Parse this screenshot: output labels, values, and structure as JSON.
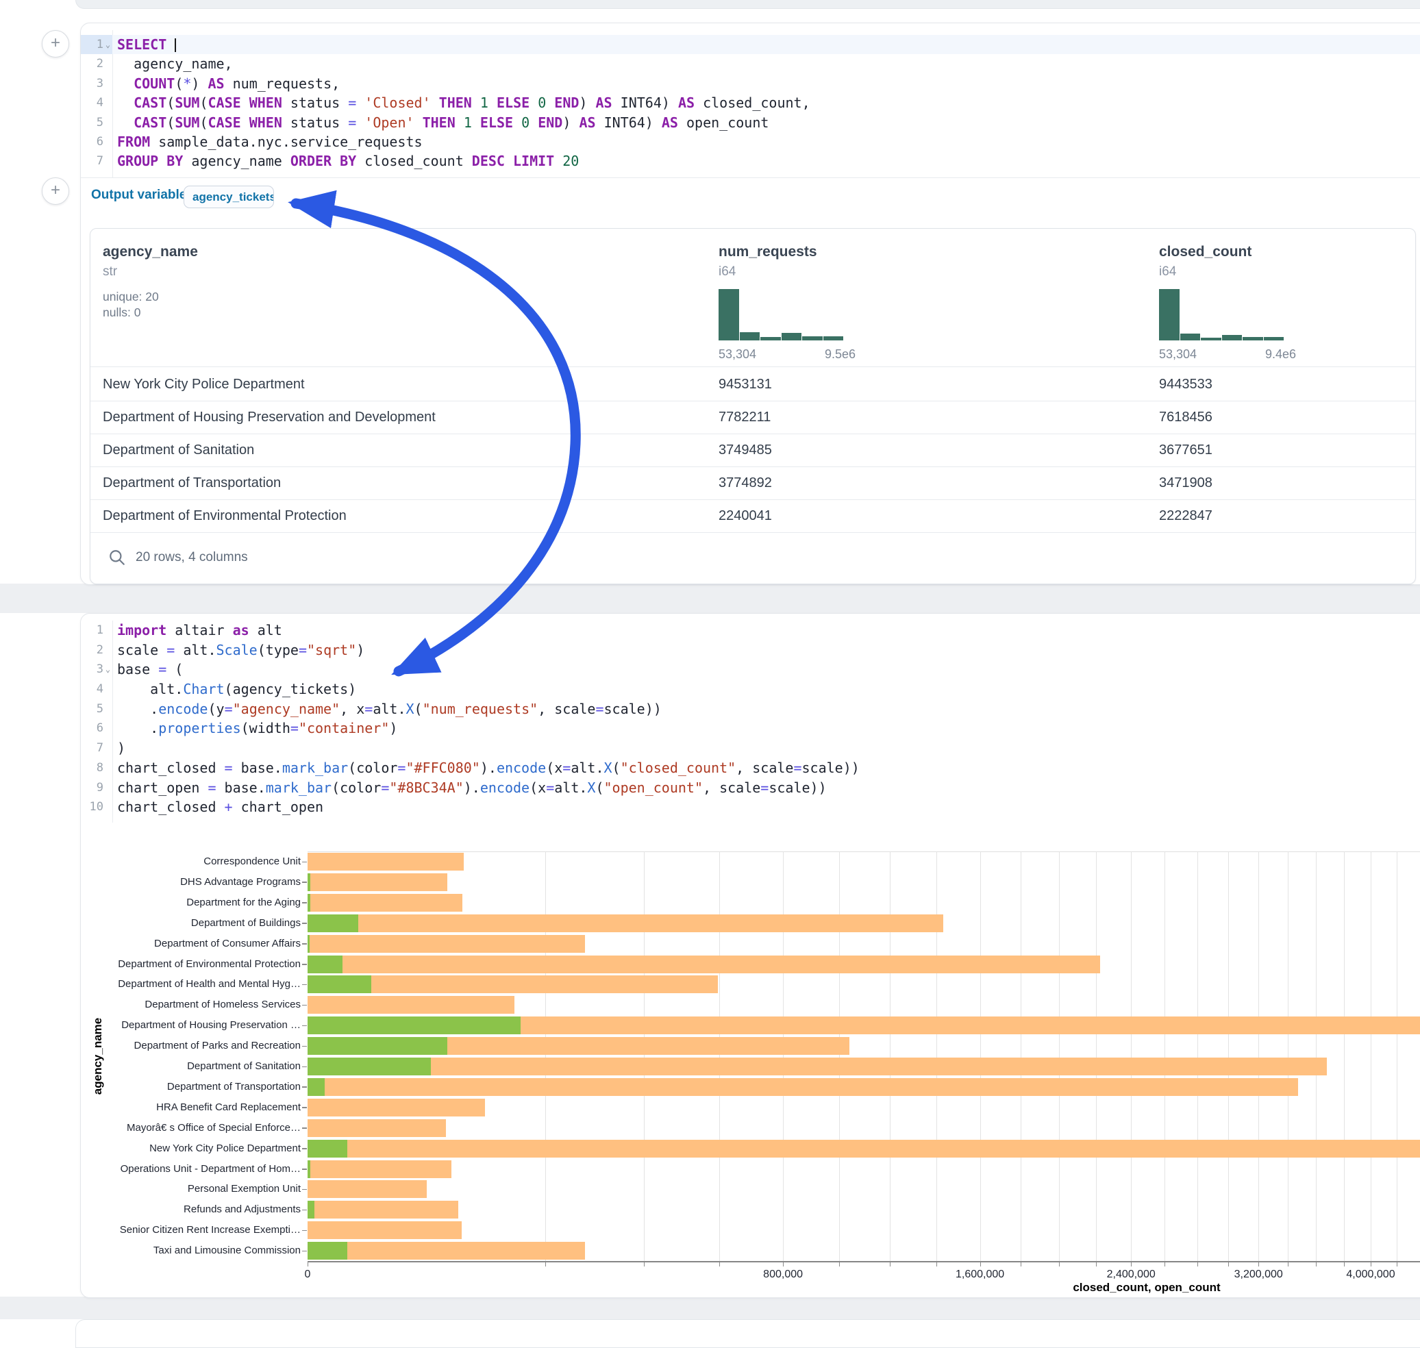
{
  "accent_colors": {
    "arrow": "#2b59e3",
    "hist_bar": "#3a7163",
    "closed_bar": "#FFC080",
    "open_bar": "#8BC34A",
    "outvar_blue": "#1173a8"
  },
  "buttons": {
    "add_cell_top": "+",
    "add_cell_mid": "+"
  },
  "sql_cell": {
    "fold_lines": [
      0
    ],
    "active_line": 0,
    "lines": [
      [
        [
          "kw",
          "SELECT"
        ],
        [
          "pl",
          " "
        ],
        [
          "cursor",
          ""
        ]
      ],
      [
        [
          "pl",
          "  agency_name,"
        ]
      ],
      [
        [
          "pl",
          "  "
        ],
        [
          "kw",
          "COUNT"
        ],
        [
          "pl",
          "("
        ],
        [
          "op",
          "*"
        ],
        [
          "pl",
          ") "
        ],
        [
          "kw",
          "AS"
        ],
        [
          "pl",
          " num_requests,"
        ]
      ],
      [
        [
          "pl",
          "  "
        ],
        [
          "kw",
          "CAST"
        ],
        [
          "pl",
          "("
        ],
        [
          "kw",
          "SUM"
        ],
        [
          "pl",
          "("
        ],
        [
          "kw",
          "CASE"
        ],
        [
          "pl",
          " "
        ],
        [
          "kw",
          "WHEN"
        ],
        [
          "pl",
          " status "
        ],
        [
          "op",
          "="
        ],
        [
          "pl",
          " "
        ],
        [
          "str",
          "'Closed'"
        ],
        [
          "pl",
          " "
        ],
        [
          "kw",
          "THEN"
        ],
        [
          "pl",
          " "
        ],
        [
          "num",
          "1"
        ],
        [
          "pl",
          " "
        ],
        [
          "kw",
          "ELSE"
        ],
        [
          "pl",
          " "
        ],
        [
          "num",
          "0"
        ],
        [
          "pl",
          " "
        ],
        [
          "kw",
          "END"
        ],
        [
          "pl",
          ") "
        ],
        [
          "kw",
          "AS"
        ],
        [
          "pl",
          " INT64) "
        ],
        [
          "kw",
          "AS"
        ],
        [
          "pl",
          " closed_count,"
        ]
      ],
      [
        [
          "pl",
          "  "
        ],
        [
          "kw",
          "CAST"
        ],
        [
          "pl",
          "("
        ],
        [
          "kw",
          "SUM"
        ],
        [
          "pl",
          "("
        ],
        [
          "kw",
          "CASE"
        ],
        [
          "pl",
          " "
        ],
        [
          "kw",
          "WHEN"
        ],
        [
          "pl",
          " status "
        ],
        [
          "op",
          "="
        ],
        [
          "pl",
          " "
        ],
        [
          "str",
          "'Open'"
        ],
        [
          "pl",
          " "
        ],
        [
          "kw",
          "THEN"
        ],
        [
          "pl",
          " "
        ],
        [
          "num",
          "1"
        ],
        [
          "pl",
          " "
        ],
        [
          "kw",
          "ELSE"
        ],
        [
          "pl",
          " "
        ],
        [
          "num",
          "0"
        ],
        [
          "pl",
          " "
        ],
        [
          "kw",
          "END"
        ],
        [
          "pl",
          ") "
        ],
        [
          "kw",
          "AS"
        ],
        [
          "pl",
          " INT64) "
        ],
        [
          "kw",
          "AS"
        ],
        [
          "pl",
          " open_count"
        ]
      ],
      [
        [
          "kw",
          "FROM"
        ],
        [
          "pl",
          " sample_data.nyc.service_requests"
        ]
      ],
      [
        [
          "kw",
          "GROUP BY"
        ],
        [
          "pl",
          " agency_name "
        ],
        [
          "kw",
          "ORDER BY"
        ],
        [
          "pl",
          " closed_count "
        ],
        [
          "kw",
          "DESC"
        ],
        [
          "pl",
          " "
        ],
        [
          "kw",
          "LIMIT"
        ],
        [
          "pl",
          " "
        ],
        [
          "num",
          "20"
        ]
      ]
    ],
    "output_variable_label": "Output variable:",
    "output_variable_value": "agency_tickets"
  },
  "table": {
    "columns": [
      {
        "name": "agency_name",
        "type": "str",
        "stat1": "unique: 20",
        "stat2": "nulls: 0"
      },
      {
        "name": "num_requests",
        "type": "i64",
        "hist": [
          100,
          16,
          7,
          15,
          8,
          8
        ],
        "hist_min": "53,304",
        "hist_max": "9.5e6"
      },
      {
        "name": "closed_count",
        "type": "i64",
        "hist": [
          100,
          14,
          5,
          11,
          7,
          7
        ],
        "hist_min": "53,304",
        "hist_max": "9.4e6"
      }
    ],
    "rows": [
      [
        "New York City Police Department",
        "9453131",
        "9443533"
      ],
      [
        "Department of Housing Preservation and Development",
        "7782211",
        "7618456"
      ],
      [
        "Department of Sanitation",
        "3749485",
        "3677651"
      ],
      [
        "Department of Transportation",
        "3774892",
        "3471908"
      ],
      [
        "Department of Environmental Protection",
        "2240041",
        "2222847"
      ]
    ],
    "footer": "20 rows, 4 columns"
  },
  "python_cell": {
    "fold_lines": [
      2
    ],
    "lines": [
      [
        [
          "kw",
          "import"
        ],
        [
          "pl",
          " altair "
        ],
        [
          "kw",
          "as"
        ],
        [
          "pl",
          " alt"
        ]
      ],
      [
        [
          "pl",
          "scale "
        ],
        [
          "op",
          "="
        ],
        [
          "pl",
          " alt."
        ],
        [
          "fn",
          "Scale"
        ],
        [
          "pl",
          "(type"
        ],
        [
          "op",
          "="
        ],
        [
          "str",
          "\"sqrt\""
        ],
        [
          "pl",
          ")"
        ]
      ],
      [
        [
          "pl",
          "base "
        ],
        [
          "op",
          "="
        ],
        [
          "pl",
          " ("
        ]
      ],
      [
        [
          "pl",
          "    alt."
        ],
        [
          "fn",
          "Chart"
        ],
        [
          "pl",
          "(agency_tickets)"
        ]
      ],
      [
        [
          "pl",
          "    ."
        ],
        [
          "fn",
          "encode"
        ],
        [
          "pl",
          "(y"
        ],
        [
          "op",
          "="
        ],
        [
          "str",
          "\"agency_name\""
        ],
        [
          "pl",
          ", x"
        ],
        [
          "op",
          "="
        ],
        [
          "pl",
          "alt."
        ],
        [
          "fn",
          "X"
        ],
        [
          "pl",
          "("
        ],
        [
          "str",
          "\"num_requests\""
        ],
        [
          "pl",
          ", scale"
        ],
        [
          "op",
          "="
        ],
        [
          "pl",
          "scale))"
        ]
      ],
      [
        [
          "pl",
          "    ."
        ],
        [
          "fn",
          "properties"
        ],
        [
          "pl",
          "(width"
        ],
        [
          "op",
          "="
        ],
        [
          "str",
          "\"container\""
        ],
        [
          "pl",
          ")"
        ]
      ],
      [
        [
          "pl",
          ")"
        ]
      ],
      [
        [
          "pl",
          "chart_closed "
        ],
        [
          "op",
          "="
        ],
        [
          "pl",
          " base."
        ],
        [
          "fn",
          "mark_bar"
        ],
        [
          "pl",
          "(color"
        ],
        [
          "op",
          "="
        ],
        [
          "str",
          "\"#FFC080\""
        ],
        [
          "pl",
          ")."
        ],
        [
          "fn",
          "encode"
        ],
        [
          "pl",
          "(x"
        ],
        [
          "op",
          "="
        ],
        [
          "pl",
          "alt."
        ],
        [
          "fn",
          "X"
        ],
        [
          "pl",
          "("
        ],
        [
          "str",
          "\"closed_count\""
        ],
        [
          "pl",
          ", scale"
        ],
        [
          "op",
          "="
        ],
        [
          "pl",
          "scale))"
        ]
      ],
      [
        [
          "pl",
          "chart_open "
        ],
        [
          "op",
          "="
        ],
        [
          "pl",
          " base."
        ],
        [
          "fn",
          "mark_bar"
        ],
        [
          "pl",
          "(color"
        ],
        [
          "op",
          "="
        ],
        [
          "str",
          "\"#8BC34A\""
        ],
        [
          "pl",
          ")."
        ],
        [
          "fn",
          "encode"
        ],
        [
          "pl",
          "(x"
        ],
        [
          "op",
          "="
        ],
        [
          "pl",
          "alt."
        ],
        [
          "fn",
          "X"
        ],
        [
          "pl",
          "("
        ],
        [
          "str",
          "\"open_count\""
        ],
        [
          "pl",
          ", scale"
        ],
        [
          "op",
          "="
        ],
        [
          "pl",
          "scale))"
        ]
      ],
      [
        [
          "pl",
          "chart_closed "
        ],
        [
          "op",
          "+"
        ],
        [
          "pl",
          " chart_open"
        ]
      ]
    ]
  },
  "chart_data": {
    "type": "bar",
    "orientation": "horizontal",
    "x_scale": "sqrt",
    "xlabel": "closed_count, open_count",
    "ylabel": "agency_name",
    "x_domain": [
      0,
      10000000
    ],
    "x_tick_step": 200000,
    "x_tick_max": 4400000,
    "x_label_values": [
      0,
      800000,
      1600000,
      2400000,
      3200000,
      4000000
    ],
    "x_label_texts": [
      "0",
      "800,000",
      "1,600,000",
      "2,400,000",
      "3,200,000",
      "4,000,000"
    ],
    "grid": true,
    "legend_position": "none",
    "categories": [
      "Correspondence Unit",
      "DHS Advantage Programs",
      "Department for the Aging",
      "Department of Buildings",
      "Department of Consumer Affairs",
      "Department of Environmental Protection",
      "Department of Health and Mental Hyg…",
      "Department of Homeless Services",
      "Department of Housing Preservation …",
      "Department of Parks and Recreation",
      "Department of Sanitation",
      "Department of Transportation",
      "HRA Benefit Card Replacement",
      "Mayorâ€ s Office of Special Enforce…",
      "New York City Police Department",
      "Operations Unit - Department of Hom…",
      "Personal Exemption Unit",
      "Refunds and Adjustments",
      "Senior Citizen Rent Increase Exempti…",
      "Taxi and Limousine Commission"
    ],
    "series": [
      {
        "name": "closed_count",
        "color": "#FFC080",
        "values": [
          86000,
          69000,
          85000,
          1430000,
          272000,
          2222847,
          596000,
          151000,
          7618456,
          1040000,
          3677651,
          3471908,
          111000,
          68000,
          9443533,
          73000,
          50000,
          80000,
          84000,
          272000
        ]
      },
      {
        "name": "open_count",
        "color": "#8BC34A",
        "values": [
          0,
          20,
          25,
          9000,
          15,
          4300,
          14500,
          0,
          161000,
          69000,
          54000,
          1000,
          0,
          0,
          5500,
          30,
          0,
          170,
          0,
          5500
        ]
      }
    ]
  }
}
